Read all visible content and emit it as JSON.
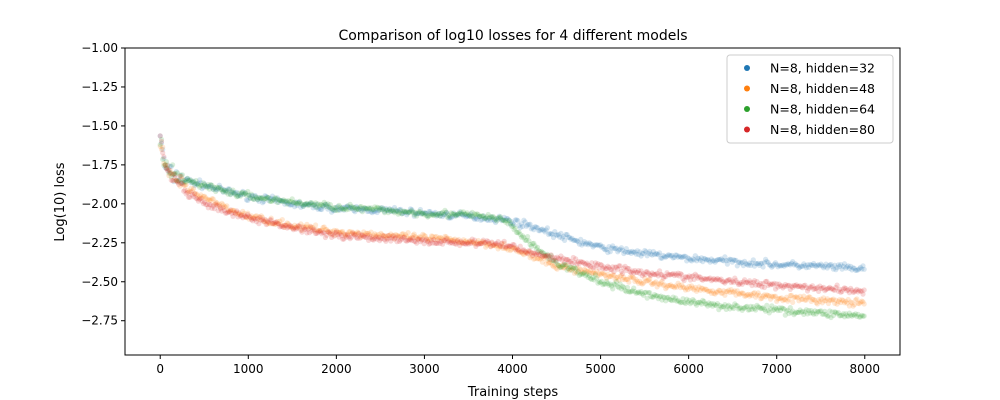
{
  "chart_data": {
    "type": "scatter",
    "title": "Comparison of log10 losses for 4 different models",
    "xlabel": "Training steps",
    "ylabel": "Log(10) loss",
    "xlim": [
      -400,
      8400
    ],
    "ylim": [
      -2.97,
      -1.0
    ],
    "xticks": [
      0,
      1000,
      2000,
      3000,
      4000,
      5000,
      6000,
      7000,
      8000
    ],
    "xtick_labels": [
      "0",
      "1000",
      "2000",
      "3000",
      "4000",
      "5000",
      "6000",
      "7000",
      "8000"
    ],
    "yticks": [
      -1.0,
      -1.25,
      -1.5,
      -1.75,
      -2.0,
      -2.25,
      -2.5,
      -2.75
    ],
    "ytick_labels": [
      "−1.00",
      "−1.25",
      "−1.50",
      "−1.75",
      "−2.00",
      "−2.25",
      "−2.50",
      "−2.75"
    ],
    "grid": false,
    "legend_position": "top-right",
    "x": [
      0,
      50,
      150,
      300,
      500,
      750,
      1000,
      1500,
      2000,
      2500,
      3000,
      3500,
      3900,
      4200,
      4500,
      5000,
      5500,
      6000,
      6500,
      7000,
      7500,
      8000
    ],
    "series": [
      {
        "name": "N=8, hidden=32",
        "color": "#1f77b4",
        "values": [
          -1.55,
          -1.76,
          -1.82,
          -1.85,
          -1.88,
          -1.92,
          -1.95,
          -2.0,
          -2.03,
          -2.04,
          -2.06,
          -2.08,
          -2.1,
          -2.14,
          -2.2,
          -2.28,
          -2.32,
          -2.35,
          -2.37,
          -2.39,
          -2.4,
          -2.42
        ]
      },
      {
        "name": "N=8, hidden=48",
        "color": "#ff7f0e",
        "values": [
          -1.6,
          -1.77,
          -1.82,
          -1.9,
          -1.96,
          -2.03,
          -2.08,
          -2.14,
          -2.18,
          -2.2,
          -2.22,
          -2.24,
          -2.27,
          -2.33,
          -2.4,
          -2.45,
          -2.5,
          -2.54,
          -2.57,
          -2.6,
          -2.62,
          -2.64
        ]
      },
      {
        "name": "N=8, hidden=64",
        "color": "#2ca02c",
        "values": [
          -1.6,
          -1.76,
          -1.82,
          -1.85,
          -1.88,
          -1.92,
          -1.95,
          -1.99,
          -2.02,
          -2.04,
          -2.06,
          -2.07,
          -2.1,
          -2.25,
          -2.38,
          -2.5,
          -2.58,
          -2.63,
          -2.66,
          -2.68,
          -2.7,
          -2.72
        ]
      },
      {
        "name": "N=8, hidden=80",
        "color": "#d62728",
        "values": [
          -1.55,
          -1.77,
          -1.83,
          -1.93,
          -2.0,
          -2.05,
          -2.09,
          -2.15,
          -2.2,
          -2.22,
          -2.24,
          -2.25,
          -2.26,
          -2.31,
          -2.35,
          -2.4,
          -2.44,
          -2.47,
          -2.5,
          -2.52,
          -2.54,
          -2.56
        ]
      }
    ]
  }
}
